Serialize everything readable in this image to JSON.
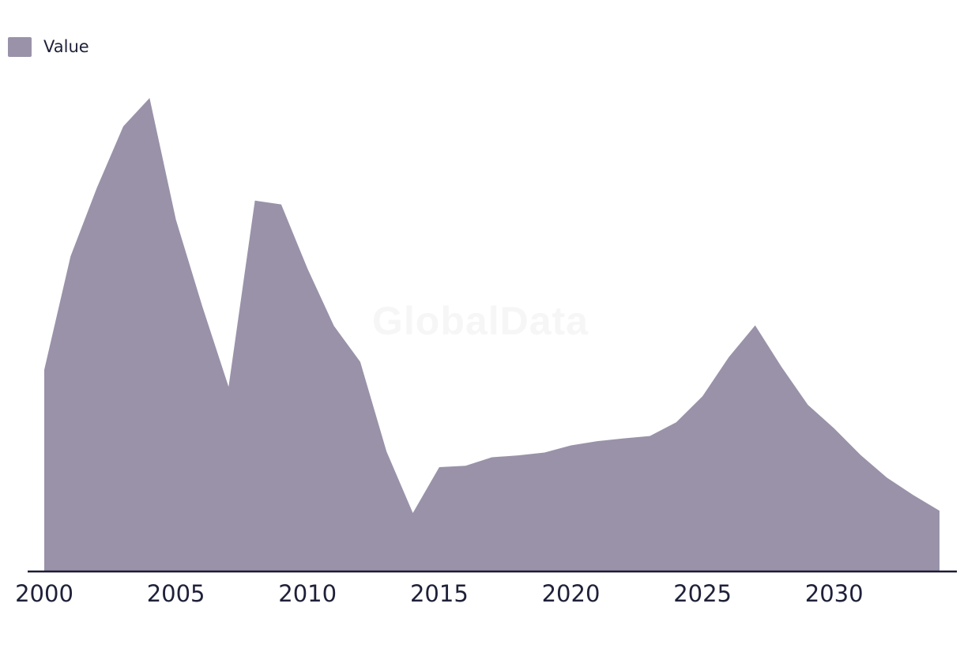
{
  "legend": {
    "label": "Value"
  },
  "watermark": {
    "text": "GlobalData"
  },
  "colors": {
    "area": "#9A92A9",
    "axis_line": "#1B1C36",
    "text": "#1E2138",
    "watermark": "#F6F6F7",
    "background": "#FFFFFF"
  },
  "chart_data": {
    "type": "area",
    "title": "",
    "xlabel": "",
    "ylabel": "",
    "grid": false,
    "legend_position": "top-left",
    "x_range": [
      2000,
      2034
    ],
    "y_range": [
      0,
      100
    ],
    "x_ticks": [
      "2000",
      "2005",
      "2010",
      "2015",
      "2020",
      "2025",
      "2030"
    ],
    "x_tick_years": [
      2000,
      2005,
      2010,
      2015,
      2020,
      2025,
      2030
    ],
    "y_axis_shown": false,
    "note": "No y-axis labels are shown in the chart; values are relative estimates scaled so the 2004 peak = 100.",
    "series": [
      {
        "name": "Value",
        "x": [
          2000,
          2001,
          2002,
          2003,
          2004,
          2005,
          2006,
          2007,
          2008,
          2009,
          2010,
          2011,
          2012,
          2013,
          2014,
          2015,
          2016,
          2017,
          2018,
          2019,
          2020,
          2021,
          2022,
          2023,
          2024,
          2025,
          2026,
          2027,
          2028,
          2029,
          2030,
          2031,
          2032,
          2033,
          2034
        ],
        "values": [
          42.5,
          66.5,
          81,
          94,
          100,
          74.3,
          56,
          38.9,
          78.3,
          77.5,
          63.9,
          51.8,
          44.2,
          25.2,
          12.2,
          21.9,
          22.2,
          24,
          24.4,
          25,
          26.5,
          27.4,
          28,
          28.5,
          31.4,
          36.9,
          45.2,
          51.9,
          43.1,
          35.1,
          30.1,
          24.5,
          19.7,
          16,
          12.7
        ]
      }
    ]
  }
}
